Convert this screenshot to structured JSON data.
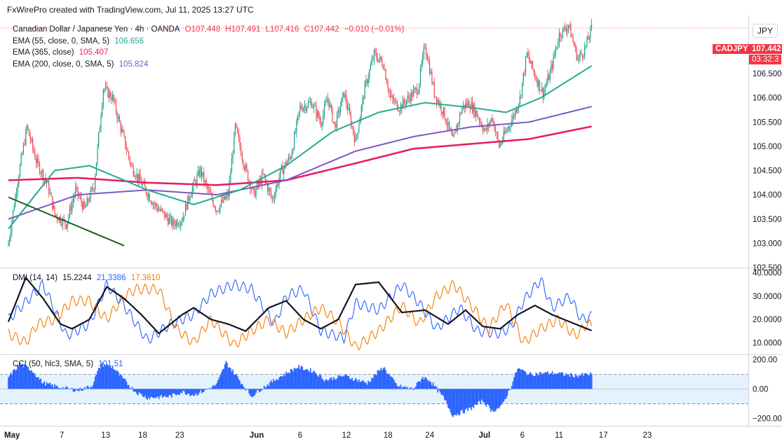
{
  "header": {
    "credit": "FxWirePro created with TradingView.com, Jul 11, 2025 13:27 UTC"
  },
  "currency_label": "JPY",
  "legend": {
    "title": "Canadian Dollar / Japanese Yen · 4h · OANDA",
    "open": "O107.448",
    "high": "H107.491",
    "low": "L107.416",
    "close": "C107.442",
    "change": "−0.010 (−0.01%)",
    "ema55": {
      "label": "EMA (55, close, 0, SMA, 5)",
      "value": "106.656",
      "color": "#22ab94"
    },
    "ema365": {
      "label": "EMA (365, close)",
      "value": "105.407",
      "color": "#e91e63"
    },
    "ema200": {
      "label": "EMA (200, close, 0, SMA, 5)",
      "value": "105.824",
      "color": "#7e57c2"
    },
    "dmi": {
      "label": "DMI (14, 14)",
      "adx": "15.2244",
      "plus": "21.3386",
      "minus": "17.3610"
    },
    "cci": {
      "label": "CCI (50, hlc3, SMA, 5)",
      "value": "101.51"
    }
  },
  "price_tag": {
    "symbol": "CADJPY",
    "price": "107.442",
    "countdown": "03:32:3"
  },
  "colors": {
    "up": "#089981",
    "down": "#f23645",
    "ema55": "#22ab94",
    "ema200": "#7e57c2",
    "ema365": "#e91e63",
    "adx": "#131722",
    "plus_di": "#2962ff",
    "minus_di": "#f57c00",
    "cci": "#2962ff",
    "trend": "#1b5e20"
  },
  "chart_data": [
    {
      "type": "candlestick",
      "symbol": "CADJPY",
      "timeframe": "4h",
      "y_ticks": [
        "107.000",
        "106.500",
        "106.000",
        "105.500",
        "105.000",
        "104.500",
        "104.000",
        "103.500",
        "103.000",
        "102.500"
      ],
      "ylim": [
        102.5,
        107.7
      ],
      "x_ticks": [
        "May",
        "7",
        "13",
        "18",
        "23",
        "Jun",
        "6",
        "12",
        "18",
        "24",
        "Jul",
        "6",
        "11",
        "17",
        "23"
      ],
      "anchors": [
        {
          "i": 0,
          "p": 103.0
        },
        {
          "i": 8,
          "p": 104.3
        },
        {
          "i": 16,
          "p": 105.4
        },
        {
          "i": 24,
          "p": 104.7
        },
        {
          "i": 34,
          "p": 104.2
        },
        {
          "i": 40,
          "p": 103.6
        },
        {
          "i": 50,
          "p": 103.4
        },
        {
          "i": 58,
          "p": 104.1
        },
        {
          "i": 66,
          "p": 103.7
        },
        {
          "i": 74,
          "p": 104.2
        },
        {
          "i": 82,
          "p": 106.2
        },
        {
          "i": 90,
          "p": 106.0
        },
        {
          "i": 98,
          "p": 105.3
        },
        {
          "i": 106,
          "p": 104.6
        },
        {
          "i": 116,
          "p": 104.2
        },
        {
          "i": 126,
          "p": 103.8
        },
        {
          "i": 134,
          "p": 103.6
        },
        {
          "i": 142,
          "p": 103.4
        },
        {
          "i": 150,
          "p": 103.5
        },
        {
          "i": 158,
          "p": 104.1
        },
        {
          "i": 166,
          "p": 104.5
        },
        {
          "i": 172,
          "p": 104.1
        },
        {
          "i": 180,
          "p": 103.7
        },
        {
          "i": 190,
          "p": 104.0
        },
        {
          "i": 196,
          "p": 105.4
        },
        {
          "i": 204,
          "p": 104.6
        },
        {
          "i": 212,
          "p": 104.0
        },
        {
          "i": 220,
          "p": 104.4
        },
        {
          "i": 228,
          "p": 103.9
        },
        {
          "i": 236,
          "p": 104.5
        },
        {
          "i": 244,
          "p": 104.8
        },
        {
          "i": 252,
          "p": 105.8
        },
        {
          "i": 262,
          "p": 105.9
        },
        {
          "i": 270,
          "p": 105.5
        },
        {
          "i": 276,
          "p": 106.0
        },
        {
          "i": 282,
          "p": 105.4
        },
        {
          "i": 290,
          "p": 106.1
        },
        {
          "i": 300,
          "p": 105.1
        },
        {
          "i": 308,
          "p": 106.2
        },
        {
          "i": 316,
          "p": 106.9
        },
        {
          "i": 324,
          "p": 106.7
        },
        {
          "i": 330,
          "p": 106.0
        },
        {
          "i": 338,
          "p": 105.8
        },
        {
          "i": 346,
          "p": 106.0
        },
        {
          "i": 354,
          "p": 106.2
        },
        {
          "i": 360,
          "p": 107.1
        },
        {
          "i": 368,
          "p": 106.1
        },
        {
          "i": 376,
          "p": 105.7
        },
        {
          "i": 384,
          "p": 105.1
        },
        {
          "i": 392,
          "p": 105.8
        },
        {
          "i": 398,
          "p": 105.9
        },
        {
          "i": 404,
          "p": 105.7
        },
        {
          "i": 412,
          "p": 105.3
        },
        {
          "i": 418,
          "p": 105.6
        },
        {
          "i": 424,
          "p": 105.0
        },
        {
          "i": 430,
          "p": 105.3
        },
        {
          "i": 436,
          "p": 105.6
        },
        {
          "i": 442,
          "p": 106.0
        },
        {
          "i": 448,
          "p": 106.9
        },
        {
          "i": 456,
          "p": 106.4
        },
        {
          "i": 462,
          "p": 106.1
        },
        {
          "i": 468,
          "p": 106.5
        },
        {
          "i": 476,
          "p": 107.3
        },
        {
          "i": 484,
          "p": 107.5
        },
        {
          "i": 492,
          "p": 106.8
        },
        {
          "i": 498,
          "p": 107.0
        },
        {
          "i": 504,
          "p": 107.44
        }
      ],
      "ema55": [
        [
          0,
          103.3
        ],
        [
          40,
          104.5
        ],
        [
          70,
          104.6
        ],
        [
          120,
          104.1
        ],
        [
          160,
          103.8
        ],
        [
          200,
          104.1
        ],
        [
          240,
          104.6
        ],
        [
          280,
          105.3
        ],
        [
          320,
          105.7
        ],
        [
          360,
          105.9
        ],
        [
          400,
          105.8
        ],
        [
          430,
          105.7
        ],
        [
          460,
          106.0
        ],
        [
          504,
          106.66
        ]
      ],
      "ema200": [
        [
          0,
          103.5
        ],
        [
          60,
          104.0
        ],
        [
          120,
          104.1
        ],
        [
          180,
          104.0
        ],
        [
          240,
          104.3
        ],
        [
          300,
          104.9
        ],
        [
          350,
          105.2
        ],
        [
          400,
          105.4
        ],
        [
          450,
          105.5
        ],
        [
          504,
          105.82
        ]
      ],
      "ema365": [
        [
          0,
          104.3
        ],
        [
          60,
          104.35
        ],
        [
          120,
          104.25
        ],
        [
          180,
          104.2
        ],
        [
          240,
          104.3
        ],
        [
          300,
          104.65
        ],
        [
          350,
          104.95
        ],
        [
          400,
          105.05
        ],
        [
          450,
          105.15
        ],
        [
          504,
          105.41
        ]
      ],
      "trendline": [
        [
          0,
          103.95
        ],
        [
          100,
          102.95
        ]
      ]
    },
    {
      "type": "line",
      "name": "DMI (14, 14)",
      "y_ticks": [
        "40.0000",
        "30.0000",
        "20.0000",
        "10.0000"
      ],
      "ylim": [
        5,
        42
      ],
      "series": [
        {
          "name": "ADX",
          "values": [
            [
              0,
              19
            ],
            [
              15,
              38
            ],
            [
              30,
              29
            ],
            [
              45,
              18
            ],
            [
              55,
              16
            ],
            [
              70,
              20
            ],
            [
              85,
              34
            ],
            [
              100,
              29
            ],
            [
              115,
              22
            ],
            [
              130,
              14
            ],
            [
              150,
              22
            ],
            [
              160,
              25
            ],
            [
              175,
              20
            ],
            [
              190,
              18
            ],
            [
              205,
              15
            ],
            [
              225,
              25
            ],
            [
              240,
              28
            ],
            [
              255,
              20
            ],
            [
              270,
              16
            ],
            [
              285,
              20
            ],
            [
              300,
              35
            ],
            [
              320,
              36
            ],
            [
              340,
              23
            ],
            [
              360,
              24
            ],
            [
              380,
              18
            ],
            [
              395,
              24
            ],
            [
              410,
              17
            ],
            [
              425,
              16
            ],
            [
              440,
              22
            ],
            [
              455,
              26
            ],
            [
              470,
              22
            ],
            [
              490,
              18
            ],
            [
              500,
              16
            ],
            [
              504,
              15.22
            ]
          ]
        },
        {
          "name": "+DI",
          "values": [
            [
              0,
              20
            ],
            [
              20,
              30
            ],
            [
              30,
              35
            ],
            [
              50,
              13
            ],
            [
              70,
              18
            ],
            [
              85,
              35
            ],
            [
              100,
              26
            ],
            [
              120,
              11
            ],
            [
              140,
              18
            ],
            [
              160,
              22
            ],
            [
              175,
              31
            ],
            [
              195,
              35
            ],
            [
              210,
              33
            ],
            [
              230,
              18
            ],
            [
              240,
              30
            ],
            [
              255,
              33
            ],
            [
              270,
              15
            ],
            [
              290,
              12
            ],
            [
              300,
              27
            ],
            [
              320,
              24
            ],
            [
              340,
              35
            ],
            [
              355,
              27
            ],
            [
              370,
              16
            ],
            [
              390,
              25
            ],
            [
              405,
              15
            ],
            [
              425,
              14
            ],
            [
              435,
              17
            ],
            [
              445,
              28
            ],
            [
              460,
              37
            ],
            [
              470,
              25
            ],
            [
              485,
              30
            ],
            [
              495,
              20
            ],
            [
              504,
              21.34
            ]
          ]
        },
        {
          "name": "−DI",
          "values": [
            [
              0,
              14
            ],
            [
              15,
              10
            ],
            [
              25,
              18
            ],
            [
              40,
              20
            ],
            [
              55,
              28
            ],
            [
              70,
              28
            ],
            [
              85,
              20
            ],
            [
              100,
              30
            ],
            [
              110,
              33
            ],
            [
              130,
              33
            ],
            [
              145,
              16
            ],
            [
              160,
              10
            ],
            [
              175,
              20
            ],
            [
              195,
              9
            ],
            [
              210,
              15
            ],
            [
              225,
              20
            ],
            [
              240,
              14
            ],
            [
              255,
              20
            ],
            [
              270,
              25
            ],
            [
              285,
              19
            ],
            [
              300,
              8
            ],
            [
              320,
              15
            ],
            [
              340,
              26
            ],
            [
              355,
              18
            ],
            [
              370,
              30
            ],
            [
              385,
              35
            ],
            [
              400,
              26
            ],
            [
              415,
              16
            ],
            [
              430,
              27
            ],
            [
              445,
              10
            ],
            [
              460,
              16
            ],
            [
              475,
              20
            ],
            [
              490,
              13
            ],
            [
              500,
              18
            ],
            [
              504,
              17.36
            ]
          ]
        }
      ]
    },
    {
      "type": "histogram",
      "name": "CCI (50, hlc3, SMA, 5)",
      "y_ticks": [
        "200.00",
        "0.00",
        "−200.00"
      ],
      "ylim": [
        -250,
        230
      ],
      "levels": [
        100,
        -100
      ],
      "anchors": [
        [
          0,
          80
        ],
        [
          10,
          170
        ],
        [
          20,
          130
        ],
        [
          30,
          40
        ],
        [
          45,
          10
        ],
        [
          60,
          -10
        ],
        [
          72,
          20
        ],
        [
          80,
          170
        ],
        [
          90,
          150
        ],
        [
          100,
          60
        ],
        [
          110,
          -20
        ],
        [
          120,
          -60
        ],
        [
          140,
          -50
        ],
        [
          150,
          -20
        ],
        [
          160,
          -40
        ],
        [
          170,
          -10
        ],
        [
          180,
          30
        ],
        [
          188,
          180
        ],
        [
          196,
          100
        ],
        [
          210,
          -50
        ],
        [
          220,
          10
        ],
        [
          234,
          80
        ],
        [
          250,
          150
        ],
        [
          264,
          120
        ],
        [
          274,
          60
        ],
        [
          290,
          90
        ],
        [
          310,
          40
        ],
        [
          324,
          150
        ],
        [
          336,
          20
        ],
        [
          350,
          0
        ],
        [
          358,
          80
        ],
        [
          364,
          60
        ],
        [
          376,
          -60
        ],
        [
          384,
          -180
        ],
        [
          398,
          -140
        ],
        [
          410,
          -80
        ],
        [
          418,
          -150
        ],
        [
          426,
          -120
        ],
        [
          434,
          10
        ],
        [
          440,
          140
        ],
        [
          450,
          100
        ],
        [
          470,
          110
        ],
        [
          490,
          90
        ],
        [
          504,
          101.51
        ]
      ]
    }
  ]
}
